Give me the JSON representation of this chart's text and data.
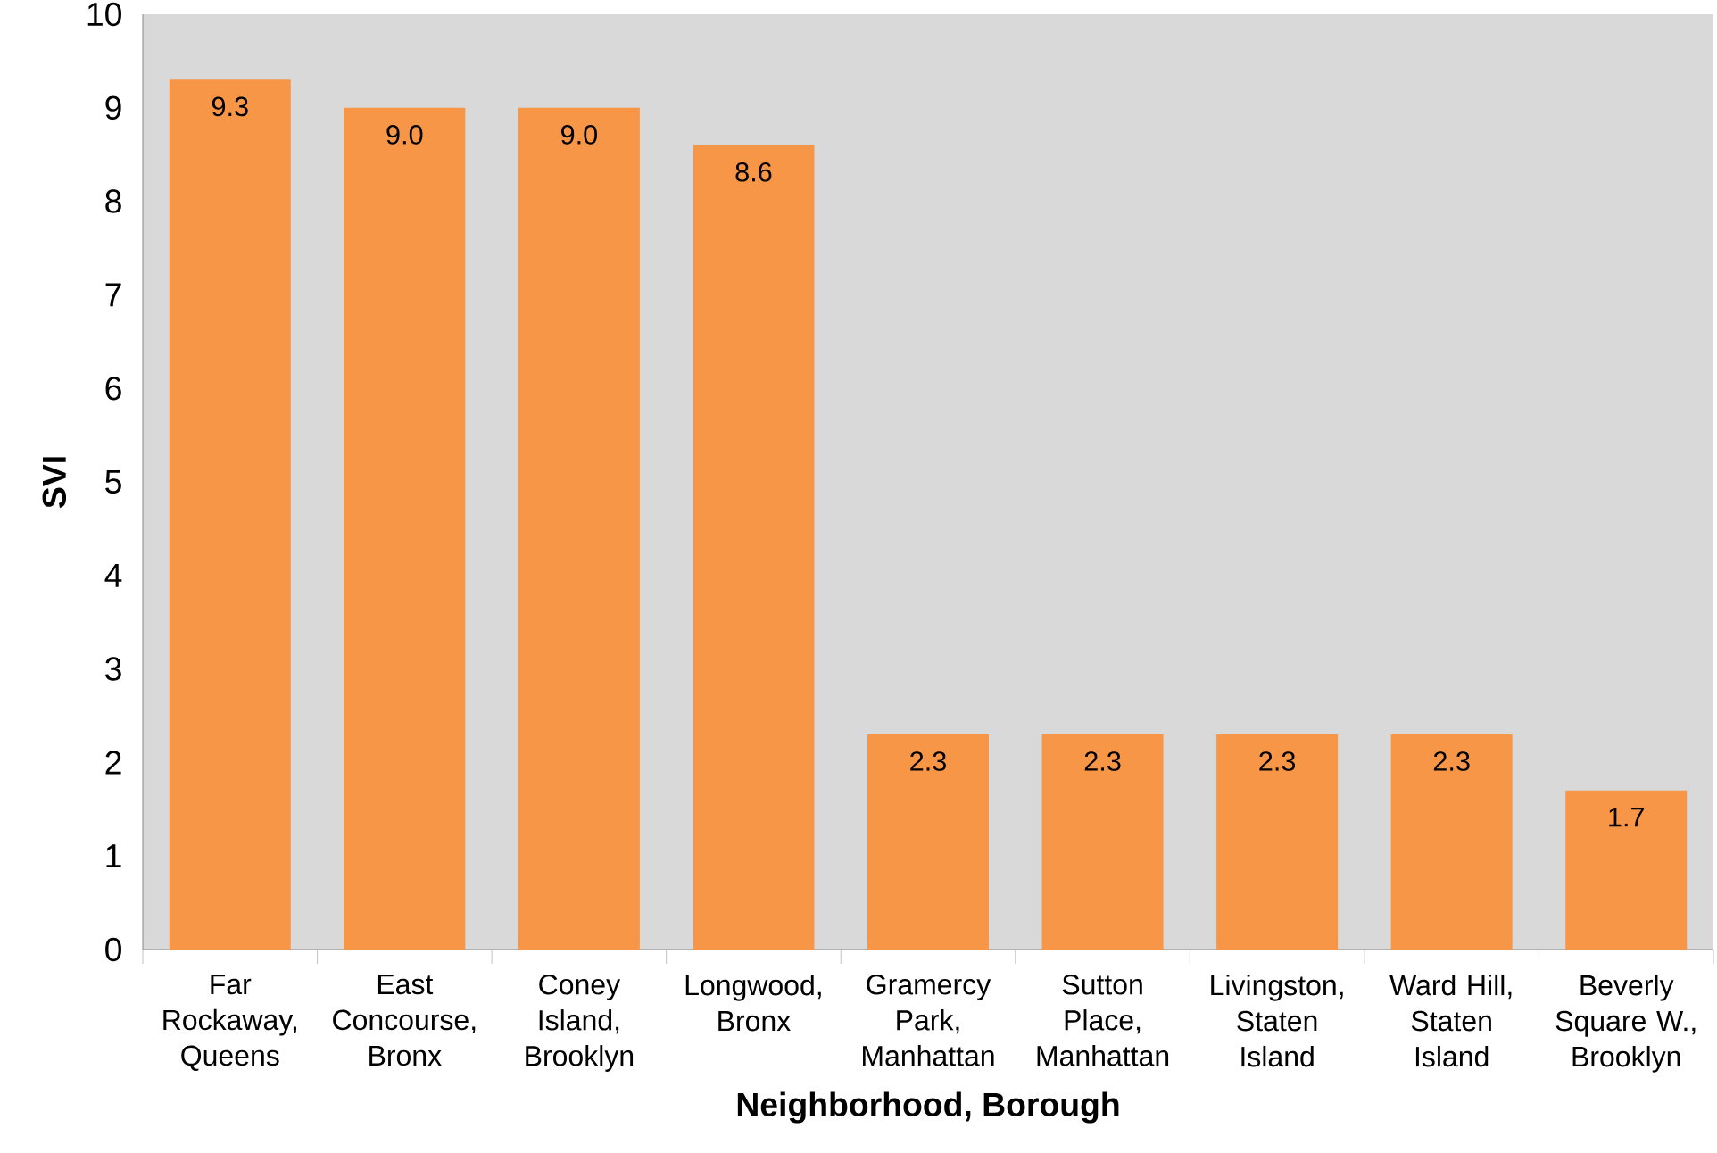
{
  "chart_data": {
    "type": "bar",
    "xlabel": "Neighborhood, Borough",
    "ylabel": "SVI",
    "categories": [
      "Far Rockaway, Queens",
      "East Concourse, Bronx",
      "Coney Island, Brooklyn",
      "Longwood, Bronx",
      "Gramercy Park, Manhattan",
      "Sutton Place, Manhattan",
      "Livingston, Staten Island",
      "Ward Hill, Staten Island",
      "Beverly Square W., Brooklyn"
    ],
    "values": [
      9.3,
      9.0,
      9.0,
      8.6,
      2.3,
      2.3,
      2.3,
      2.3,
      1.7
    ],
    "value_labels": [
      "9.3",
      "9.0",
      "9.0",
      "8.6",
      "2.3",
      "2.3",
      "2.3",
      "2.3",
      "1.7"
    ],
    "color": "#f79646",
    "ylim": [
      0,
      10
    ],
    "yticks": [
      0,
      1,
      2,
      3,
      4,
      5,
      6,
      7,
      8,
      9,
      10
    ]
  }
}
